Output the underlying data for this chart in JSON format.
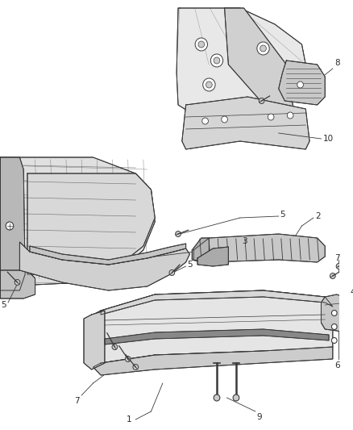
{
  "background_color": "#ffffff",
  "line_color": "#3a3a3a",
  "label_color": "#2a2a2a",
  "fig_width": 4.38,
  "fig_height": 5.33,
  "dpi": 100,
  "label_fontsize": 7.5,
  "line_width": 0.7
}
